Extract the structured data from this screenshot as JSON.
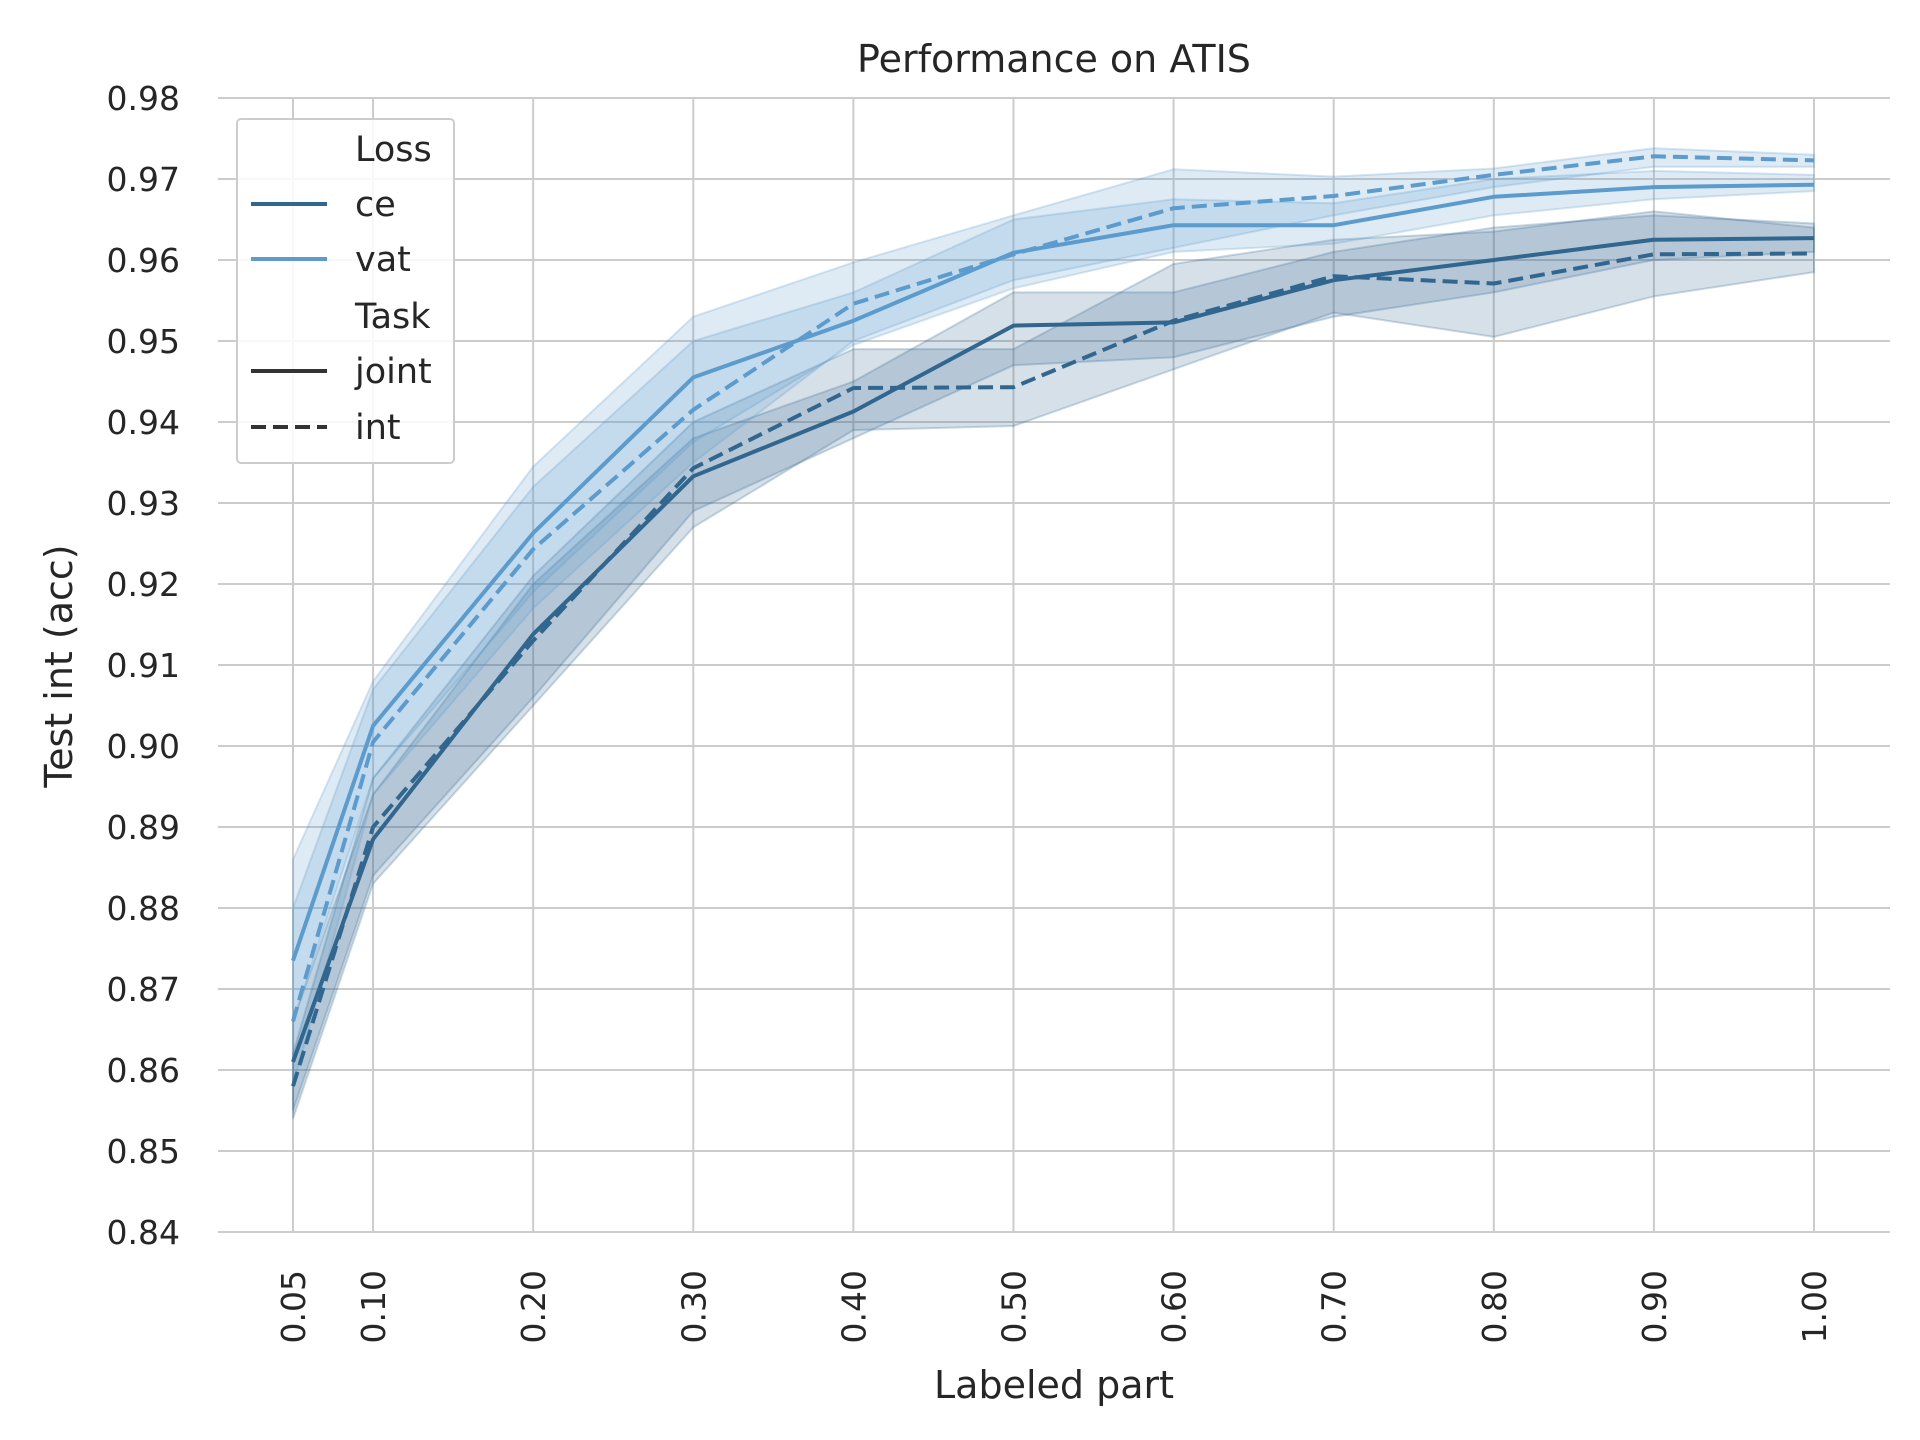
{
  "chart_data": {
    "type": "line",
    "title": "Performance on ATIS",
    "xlabel": "Labeled part",
    "ylabel": "Test int (acc)",
    "x": [
      0.05,
      0.1,
      0.2,
      0.3,
      0.4,
      0.5,
      0.6,
      0.7,
      0.8,
      0.9,
      1.0
    ],
    "x_tick_labels": [
      "0.05",
      "0.10",
      "0.20",
      "0.30",
      "0.40",
      "0.50",
      "0.60",
      "0.70",
      "0.80",
      "0.90",
      "1.00"
    ],
    "ylim": [
      0.84,
      0.98
    ],
    "y_ticks": [
      0.84,
      0.85,
      0.86,
      0.87,
      0.88,
      0.89,
      0.9,
      0.91,
      0.92,
      0.93,
      0.94,
      0.95,
      0.96,
      0.97,
      0.98
    ],
    "y_tick_labels": [
      "0.84",
      "0.85",
      "0.86",
      "0.87",
      "0.88",
      "0.89",
      "0.90",
      "0.91",
      "0.92",
      "0.93",
      "0.94",
      "0.95",
      "0.96",
      "0.97",
      "0.98"
    ],
    "grid": true,
    "legend": {
      "placement": "top-left",
      "groups": [
        {
          "title": "Loss",
          "entries": [
            {
              "label": "ce",
              "color": "#31668f",
              "dash": "solid"
            },
            {
              "label": "vat",
              "color": "#5b9bcd",
              "dash": "solid"
            }
          ]
        },
        {
          "title": "Task",
          "entries": [
            {
              "label": "joint",
              "color": "#333333",
              "dash": "solid"
            },
            {
              "label": "int",
              "color": "#333333",
              "dash": "dashed"
            }
          ]
        }
      ]
    },
    "series": [
      {
        "loss": "ce",
        "task": "joint",
        "color": "#31668f",
        "dash": "solid",
        "values": [
          0.861,
          0.8885,
          0.9138,
          0.9333,
          0.9413,
          0.9519,
          0.9523,
          0.9575,
          0.96,
          0.9625,
          0.9627
        ],
        "lower": [
          0.855,
          0.884,
          0.906,
          0.929,
          0.938,
          0.947,
          0.948,
          0.953,
          0.956,
          0.96,
          0.961
        ],
        "upper": [
          0.866,
          0.894,
          0.92,
          0.938,
          0.945,
          0.956,
          0.956,
          0.961,
          0.964,
          0.9655,
          0.9645
        ]
      },
      {
        "loss": "ce",
        "task": "int",
        "color": "#31668f",
        "dash": "dashed",
        "values": [
          0.858,
          0.89,
          0.913,
          0.9343,
          0.9442,
          0.9443,
          0.9525,
          0.958,
          0.9571,
          0.9607,
          0.9608
        ],
        "lower": [
          0.854,
          0.883,
          0.905,
          0.927,
          0.939,
          0.9395,
          0.9465,
          0.9535,
          0.9505,
          0.9555,
          0.9585
        ],
        "upper": [
          0.862,
          0.896,
          0.921,
          0.94,
          0.949,
          0.949,
          0.9595,
          0.9625,
          0.9635,
          0.966,
          0.964
        ]
      },
      {
        "loss": "vat",
        "task": "joint",
        "color": "#5b9bcd",
        "dash": "solid",
        "values": [
          0.8735,
          0.9025,
          0.9263,
          0.9455,
          0.9525,
          0.9609,
          0.9643,
          0.9643,
          0.9678,
          0.969,
          0.9693
        ],
        "lower": [
          0.866,
          0.896,
          0.919,
          0.9375,
          0.9495,
          0.9565,
          0.961,
          0.962,
          0.9655,
          0.9675,
          0.9685
        ],
        "upper": [
          0.88,
          0.907,
          0.932,
          0.95,
          0.956,
          0.965,
          0.9675,
          0.967,
          0.97,
          0.971,
          0.9705
        ]
      },
      {
        "loss": "vat",
        "task": "int",
        "color": "#5b9bcd",
        "dash": "dashed",
        "values": [
          0.866,
          0.9005,
          0.9243,
          0.9415,
          0.9546,
          0.9607,
          0.9664,
          0.9679,
          0.9705,
          0.9728,
          0.9723
        ],
        "lower": [
          0.858,
          0.894,
          0.917,
          0.935,
          0.95,
          0.9575,
          0.9615,
          0.9655,
          0.969,
          0.9715,
          0.9715
        ],
        "upper": [
          0.886,
          0.908,
          0.9345,
          0.953,
          0.9597,
          0.9655,
          0.9712,
          0.9703,
          0.9713,
          0.9738,
          0.973
        ]
      }
    ]
  }
}
